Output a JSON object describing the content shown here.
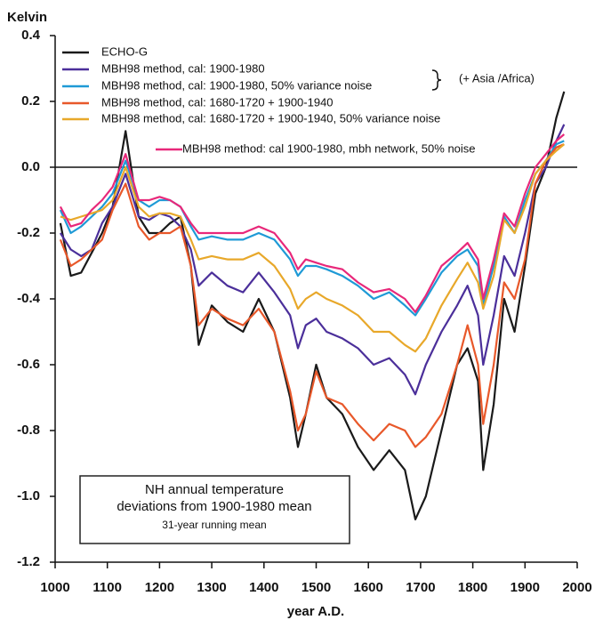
{
  "chart_data": {
    "type": "line",
    "y_label": "Kelvin",
    "x_label": "year A.D.",
    "annotation_brace": "(+ Asia /Africa)",
    "annotation_box": [
      "NH annual temperature",
      "deviations from 1900-1980 mean",
      "31-year running mean"
    ],
    "x": [
      1010,
      1030,
      1050,
      1070,
      1090,
      1110,
      1135,
      1160,
      1180,
      1200,
      1220,
      1240,
      1260,
      1275,
      1300,
      1330,
      1360,
      1390,
      1420,
      1450,
      1465,
      1480,
      1500,
      1520,
      1550,
      1580,
      1610,
      1640,
      1670,
      1690,
      1710,
      1740,
      1770,
      1790,
      1810,
      1820,
      1840,
      1860,
      1880,
      1900,
      1920,
      1940,
      1960,
      1975
    ],
    "series": [
      {
        "name": "ECHO-G",
        "color": "#1a1a1a",
        "values": [
          -0.17,
          -0.33,
          -0.32,
          -0.26,
          -0.2,
          -0.12,
          0.11,
          -0.15,
          -0.2,
          -0.2,
          -0.17,
          -0.15,
          -0.3,
          -0.54,
          -0.42,
          -0.47,
          -0.5,
          -0.4,
          -0.5,
          -0.7,
          -0.85,
          -0.75,
          -0.6,
          -0.7,
          -0.75,
          -0.85,
          -0.92,
          -0.86,
          -0.92,
          -1.07,
          -1.0,
          -0.8,
          -0.6,
          -0.55,
          -0.65,
          -0.92,
          -0.72,
          -0.4,
          -0.5,
          -0.3,
          -0.08,
          0.0,
          0.15,
          0.23
        ]
      },
      {
        "name": "MBH98 method, cal: 1900-1980",
        "color": "#4b2f9a",
        "values": [
          -0.2,
          -0.25,
          -0.27,
          -0.25,
          -0.17,
          -0.12,
          -0.02,
          -0.15,
          -0.16,
          -0.14,
          -0.15,
          -0.18,
          -0.25,
          -0.36,
          -0.32,
          -0.36,
          -0.38,
          -0.32,
          -0.38,
          -0.45,
          -0.55,
          -0.48,
          -0.46,
          -0.5,
          -0.52,
          -0.55,
          -0.6,
          -0.58,
          -0.63,
          -0.69,
          -0.6,
          -0.5,
          -0.42,
          -0.36,
          -0.45,
          -0.6,
          -0.45,
          -0.27,
          -0.33,
          -0.2,
          -0.05,
          0.0,
          0.08,
          0.13
        ]
      },
      {
        "name": "MBH98 method, cal: 1900-1980, 50% variance noise",
        "color": "#1f9ad6",
        "values": [
          -0.13,
          -0.2,
          -0.18,
          -0.15,
          -0.12,
          -0.08,
          0.02,
          -0.1,
          -0.12,
          -0.1,
          -0.1,
          -0.12,
          -0.18,
          -0.22,
          -0.21,
          -0.22,
          -0.22,
          -0.2,
          -0.22,
          -0.28,
          -0.33,
          -0.3,
          -0.3,
          -0.31,
          -0.33,
          -0.36,
          -0.4,
          -0.38,
          -0.42,
          -0.45,
          -0.4,
          -0.32,
          -0.27,
          -0.25,
          -0.3,
          -0.42,
          -0.3,
          -0.15,
          -0.2,
          -0.1,
          -0.02,
          0.02,
          0.07,
          0.08
        ]
      },
      {
        "name": "MBH98 method, cal: 1680-1720 + 1900-1940",
        "color": "#e8582a",
        "values": [
          -0.22,
          -0.3,
          -0.28,
          -0.25,
          -0.22,
          -0.13,
          -0.05,
          -0.18,
          -0.22,
          -0.2,
          -0.2,
          -0.18,
          -0.3,
          -0.48,
          -0.43,
          -0.46,
          -0.48,
          -0.43,
          -0.5,
          -0.68,
          -0.8,
          -0.75,
          -0.62,
          -0.7,
          -0.72,
          -0.78,
          -0.83,
          -0.78,
          -0.8,
          -0.85,
          -0.82,
          -0.75,
          -0.6,
          -0.48,
          -0.6,
          -0.78,
          -0.6,
          -0.35,
          -0.4,
          -0.28,
          -0.05,
          0.02,
          0.06,
          0.07
        ]
      },
      {
        "name": "MBH98 method, cal: 1680-1720 + 1900-1940, 50% variance  noise",
        "color": "#e8a82a",
        "values": [
          -0.15,
          -0.16,
          -0.15,
          -0.14,
          -0.13,
          -0.1,
          0.0,
          -0.12,
          -0.15,
          -0.14,
          -0.14,
          -0.15,
          -0.22,
          -0.28,
          -0.27,
          -0.28,
          -0.28,
          -0.26,
          -0.3,
          -0.37,
          -0.43,
          -0.4,
          -0.38,
          -0.4,
          -0.42,
          -0.45,
          -0.5,
          -0.5,
          -0.54,
          -0.56,
          -0.52,
          -0.42,
          -0.34,
          -0.29,
          -0.35,
          -0.43,
          -0.33,
          -0.16,
          -0.2,
          -0.12,
          -0.02,
          0.02,
          0.05,
          0.07
        ]
      },
      {
        "name": "MBH98 method: cal 1900-1980, mbh network, 50% noise",
        "color": "#e8287a",
        "values": [
          -0.12,
          -0.18,
          -0.17,
          -0.13,
          -0.1,
          -0.06,
          0.04,
          -0.1,
          -0.1,
          -0.09,
          -0.1,
          -0.12,
          -0.17,
          -0.2,
          -0.2,
          -0.2,
          -0.2,
          -0.18,
          -0.2,
          -0.26,
          -0.31,
          -0.28,
          -0.29,
          -0.3,
          -0.31,
          -0.35,
          -0.38,
          -0.37,
          -0.4,
          -0.44,
          -0.39,
          -0.3,
          -0.26,
          -0.23,
          -0.28,
          -0.4,
          -0.28,
          -0.14,
          -0.18,
          -0.08,
          0.0,
          0.04,
          0.08,
          0.1
        ]
      }
    ],
    "xlim": [
      1000,
      2000
    ],
    "xticks": [
      1000,
      1100,
      1200,
      1300,
      1400,
      1500,
      1600,
      1700,
      1800,
      1900,
      2000
    ],
    "ylim": [
      -1.2,
      0.4
    ],
    "yticks": [
      0.4,
      0.2,
      {
        "value": 0,
        "label": "0.0"
      },
      -0.2,
      -0.4,
      -0.6,
      -0.8,
      {
        "value": -1,
        "label": "-1.0"
      },
      -1.2
    ]
  }
}
